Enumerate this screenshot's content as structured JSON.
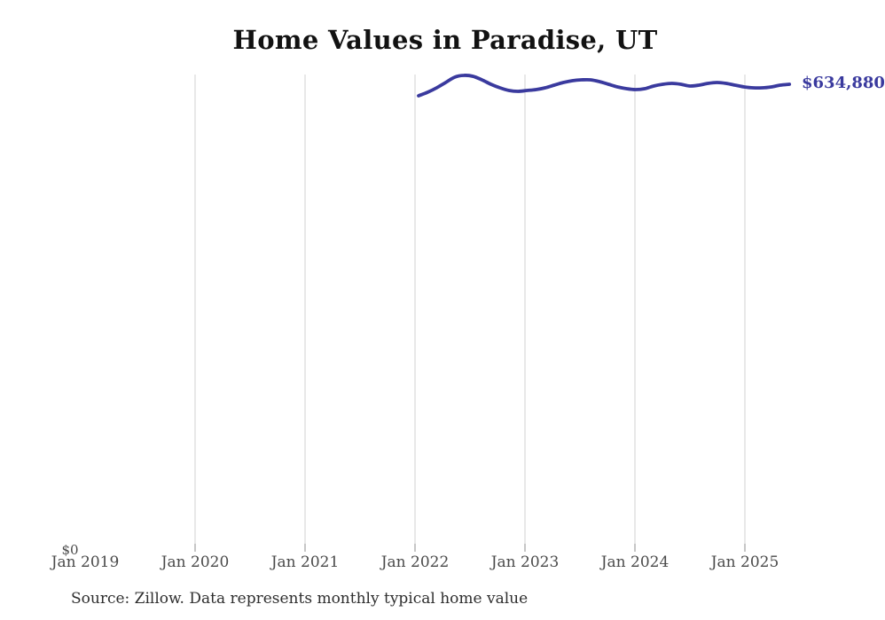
{
  "title": "Home Values in Paradise, UT",
  "source_note": "Source: Zillow. Data represents monthly typical home value",
  "y_axis": {
    "zero_label": "$0"
  },
  "end_value_label": "$634,880",
  "colors": {
    "background": "#ffffff",
    "line": "#3a3a9e",
    "end_label": "#3a3a9e",
    "gridline": "#d2d2d2",
    "tick": "#8c8c8c",
    "axis_label": "#4a4a4a",
    "title": "#121212",
    "source": "#2e2e2e"
  },
  "chart_data": {
    "type": "line",
    "title": "Home Values in Paradise, UT",
    "xlabel": "",
    "ylabel": "",
    "x_tick_labels": [
      "Jan 2019",
      "Jan 2020",
      "Jan 2021",
      "Jan 2022",
      "Jan 2023",
      "Jan 2024",
      "Jan 2025"
    ],
    "y_tick_labels": [
      "$0"
    ],
    "ylim": [
      0,
      650000
    ],
    "grid": "vertical-only",
    "legend": "none",
    "end_annotation": "$634,880",
    "series": [
      {
        "name": "Monthly typical home value",
        "x": [
          "Jan 2022",
          "Feb 2022",
          "Mar 2022",
          "Apr 2022",
          "May 2022",
          "Jun 2022",
          "Jul 2022",
          "Aug 2022",
          "Sep 2022",
          "Oct 2022",
          "Nov 2022",
          "Dec 2022",
          "Jan 2023",
          "Feb 2023",
          "Mar 2023",
          "Apr 2023",
          "May 2023",
          "Jun 2023",
          "Jul 2023",
          "Aug 2023",
          "Sep 2023",
          "Oct 2023",
          "Nov 2023",
          "Dec 2023",
          "Jan 2024",
          "Feb 2024",
          "Mar 2024",
          "Apr 2024",
          "May 2024",
          "Jun 2024",
          "Jul 2024",
          "Aug 2024",
          "Sep 2024",
          "Oct 2024",
          "Nov 2024",
          "Dec 2024",
          "Jan 2025",
          "Feb 2025",
          "Mar 2025",
          "Apr 2025",
          "May 2025",
          "Jun 2025"
        ],
        "values": [
          619200,
          624000,
          630000,
          637300,
          644600,
          647000,
          645800,
          640900,
          634900,
          630000,
          626400,
          625200,
          626400,
          627600,
          630000,
          633700,
          637300,
          639700,
          640900,
          640900,
          638500,
          634900,
          631300,
          628800,
          627600,
          628800,
          632500,
          634900,
          636100,
          634900,
          632500,
          633700,
          636100,
          637300,
          636100,
          633700,
          631300,
          630000,
          630000,
          631300,
          633700,
          634880
        ]
      }
    ]
  }
}
